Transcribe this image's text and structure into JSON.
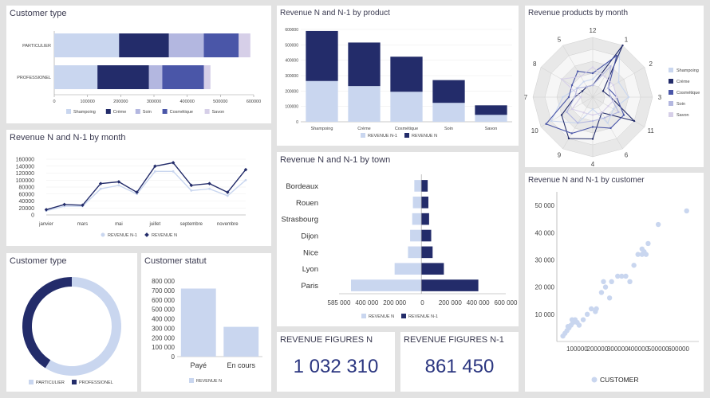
{
  "colors": {
    "light": "#c9d6ef",
    "dark": "#232c6a",
    "mid_light": "#b3b7e0",
    "mid_dark": "#4a56a8",
    "pale": "#d6cfe8",
    "kpi": "#2b3680"
  },
  "customer_type_bar": {
    "title": "Customer type",
    "chart_data": {
      "type": "bar",
      "orientation": "horizontal",
      "stacked": true,
      "categories": [
        "PARTICULIER",
        "PROFESSIONEL"
      ],
      "series": [
        {
          "name": "Shampoing",
          "values": [
            195000,
            130000
          ]
        },
        {
          "name": "Crème",
          "values": [
            150000,
            155000
          ]
        },
        {
          "name": "Soin",
          "values": [
            105000,
            40000
          ]
        },
        {
          "name": "Cosmétique",
          "values": [
            105000,
            125000
          ]
        },
        {
          "name": "Savon",
          "values": [
            35000,
            20000
          ]
        }
      ],
      "xticks": [
        "0",
        "100000",
        "200000",
        "300000",
        "400000",
        "500000",
        "600000"
      ],
      "xlim": [
        0,
        600000
      ]
    }
  },
  "revenue_product": {
    "title": "Revenue N and N-1 by product",
    "chart_data": {
      "type": "bar",
      "stacked": true,
      "categories": [
        "Shampoing",
        "Crème",
        "Cosmétique",
        "Soin",
        "Savon"
      ],
      "series": [
        {
          "name": "REVENUE N-1",
          "values": [
            265000,
            232000,
            195000,
            123000,
            45000
          ]
        },
        {
          "name": "REVENUE N",
          "values": [
            325000,
            283000,
            228000,
            148000,
            62000
          ]
        }
      ],
      "yticks": [
        "0",
        "100000",
        "200000",
        "300000",
        "400000",
        "500000",
        "600000"
      ],
      "ylim": [
        0,
        600000
      ]
    }
  },
  "radar": {
    "title": "Revenue products by month",
    "chart_data": {
      "type": "radar",
      "axes": [
        "12",
        "1",
        "2",
        "3",
        "11",
        "6",
        "4",
        "9",
        "10",
        "7",
        "8",
        "5"
      ],
      "series": [
        {
          "name": "Shampoing",
          "values": [
            3,
            9,
            5,
            6,
            4,
            5,
            2,
            5,
            8,
            5,
            3,
            3
          ]
        },
        {
          "name": "Crème",
          "values": [
            2,
            10,
            2,
            3,
            8,
            3,
            7,
            8,
            6,
            3,
            2,
            2
          ]
        },
        {
          "name": "Cosmétique",
          "values": [
            4,
            8,
            3,
            4,
            6,
            6,
            5,
            7,
            9,
            4,
            4,
            5
          ]
        },
        {
          "name": "Soin",
          "values": [
            2,
            6,
            3,
            3,
            5,
            4,
            4,
            5,
            5,
            3,
            3,
            2
          ]
        },
        {
          "name": "Savon",
          "values": [
            5,
            4,
            4,
            4,
            3,
            3,
            3,
            3,
            4,
            2,
            6,
            4
          ]
        }
      ],
      "rmax": 10
    }
  },
  "revenue_month": {
    "title": "Revenue N and N-1 by month",
    "chart_data": {
      "type": "line",
      "x": [
        "janvier",
        "février",
        "mars",
        "avril",
        "mai",
        "juin",
        "juillet",
        "août",
        "septembre",
        "octobre",
        "novembre",
        "décembre"
      ],
      "xticks": [
        "janvier",
        "mars",
        "mai",
        "juillet",
        "septembre",
        "novembre"
      ],
      "series": [
        {
          "name": "REVENUE N-1",
          "values": [
            12000,
            25000,
            25000,
            75000,
            85000,
            60000,
            125000,
            125000,
            70000,
            75000,
            55000,
            100000
          ]
        },
        {
          "name": "REVENUE N",
          "values": [
            15000,
            30000,
            28000,
            90000,
            95000,
            65000,
            140000,
            150000,
            85000,
            90000,
            65000,
            130000
          ]
        }
      ],
      "yticks": [
        "0",
        "20000",
        "40000",
        "60000",
        "80000",
        "100000",
        "120000",
        "140000",
        "160000"
      ],
      "ylim": [
        0,
        160000
      ]
    }
  },
  "revenue_town": {
    "title": "Revenue N and N-1 by town",
    "chart_data": {
      "type": "bar",
      "orientation": "horizontal",
      "diverging": true,
      "categories": [
        "Bordeaux",
        "Rouen",
        "Strasbourg",
        "Dijon",
        "Nice",
        "Lyon",
        "Paris"
      ],
      "series": [
        {
          "name": "REVENUE N",
          "values": [
            50000,
            60000,
            65000,
            80000,
            95000,
            190000,
            500000
          ]
        },
        {
          "name": "REVENUE N-1",
          "values": [
            45000,
            50000,
            55000,
            70000,
            80000,
            160000,
            405000
          ]
        }
      ],
      "xticks": [
        "585 000",
        "400 000",
        "200 000",
        "0",
        "200 000",
        "400 000",
        "600 000"
      ],
      "xlim": [
        -585000,
        600000
      ]
    }
  },
  "revenue_customer": {
    "title": "Revenue N and N-1 by customer",
    "chart_data": {
      "type": "scatter",
      "series": [
        {
          "name": "CUSTOMER",
          "points": [
            [
              30000,
              2000
            ],
            [
              40000,
              3000
            ],
            [
              50000,
              4000
            ],
            [
              60000,
              5000
            ],
            [
              70000,
              6000
            ],
            [
              80000,
              7000
            ],
            [
              90000,
              8000
            ],
            [
              55000,
              5500
            ],
            [
              75000,
              8000
            ],
            [
              100000,
              7000
            ],
            [
              110000,
              6000
            ],
            [
              130000,
              8000
            ],
            [
              150000,
              10000
            ],
            [
              170000,
              12000
            ],
            [
              190000,
              11000
            ],
            [
              195000,
              12000
            ],
            [
              220000,
              18000
            ],
            [
              230000,
              22000
            ],
            [
              240000,
              20000
            ],
            [
              260000,
              16000
            ],
            [
              270000,
              22000
            ],
            [
              300000,
              24000
            ],
            [
              320000,
              24000
            ],
            [
              340000,
              24000
            ],
            [
              360000,
              22000
            ],
            [
              380000,
              28000
            ],
            [
              400000,
              32000
            ],
            [
              420000,
              32000
            ],
            [
              430000,
              33000
            ],
            [
              440000,
              32000
            ],
            [
              450000,
              36000
            ],
            [
              420000,
              34000
            ],
            [
              500000,
              43000
            ],
            [
              640000,
              48000
            ]
          ]
        }
      ],
      "xticks": [
        "100000",
        "200000",
        "300000",
        "400000",
        "500000",
        "600000"
      ],
      "yticks": [
        "10 000",
        "20 000",
        "30 000",
        "40 000",
        "50 000"
      ],
      "xlim": [
        0,
        700000
      ],
      "ylim": [
        0,
        55000
      ]
    }
  },
  "customer_type_donut": {
    "title": "Customer type",
    "chart_data": {
      "type": "pie",
      "donut": true,
      "categories": [
        "PARTICULIER",
        "PROFESSIONEL"
      ],
      "values": [
        59,
        41
      ]
    }
  },
  "customer_statut": {
    "title": "Customer statut",
    "chart_data": {
      "type": "bar",
      "categories": [
        "Payé",
        "En cours"
      ],
      "series": [
        {
          "name": "REVENUE N",
          "values": [
            720000,
            315000
          ]
        }
      ],
      "yticks": [
        "0",
        "100 000",
        "200 000",
        "300 000",
        "400 000",
        "500 000",
        "600 000",
        "700 000",
        "800 000"
      ],
      "ylim": [
        0,
        800000
      ]
    }
  },
  "kpi_n": {
    "title": "REVENUE FIGURES N",
    "value": "1 032 310"
  },
  "kpi_n1": {
    "title": "REVENUE FIGURES N-1",
    "value": "861 450"
  }
}
